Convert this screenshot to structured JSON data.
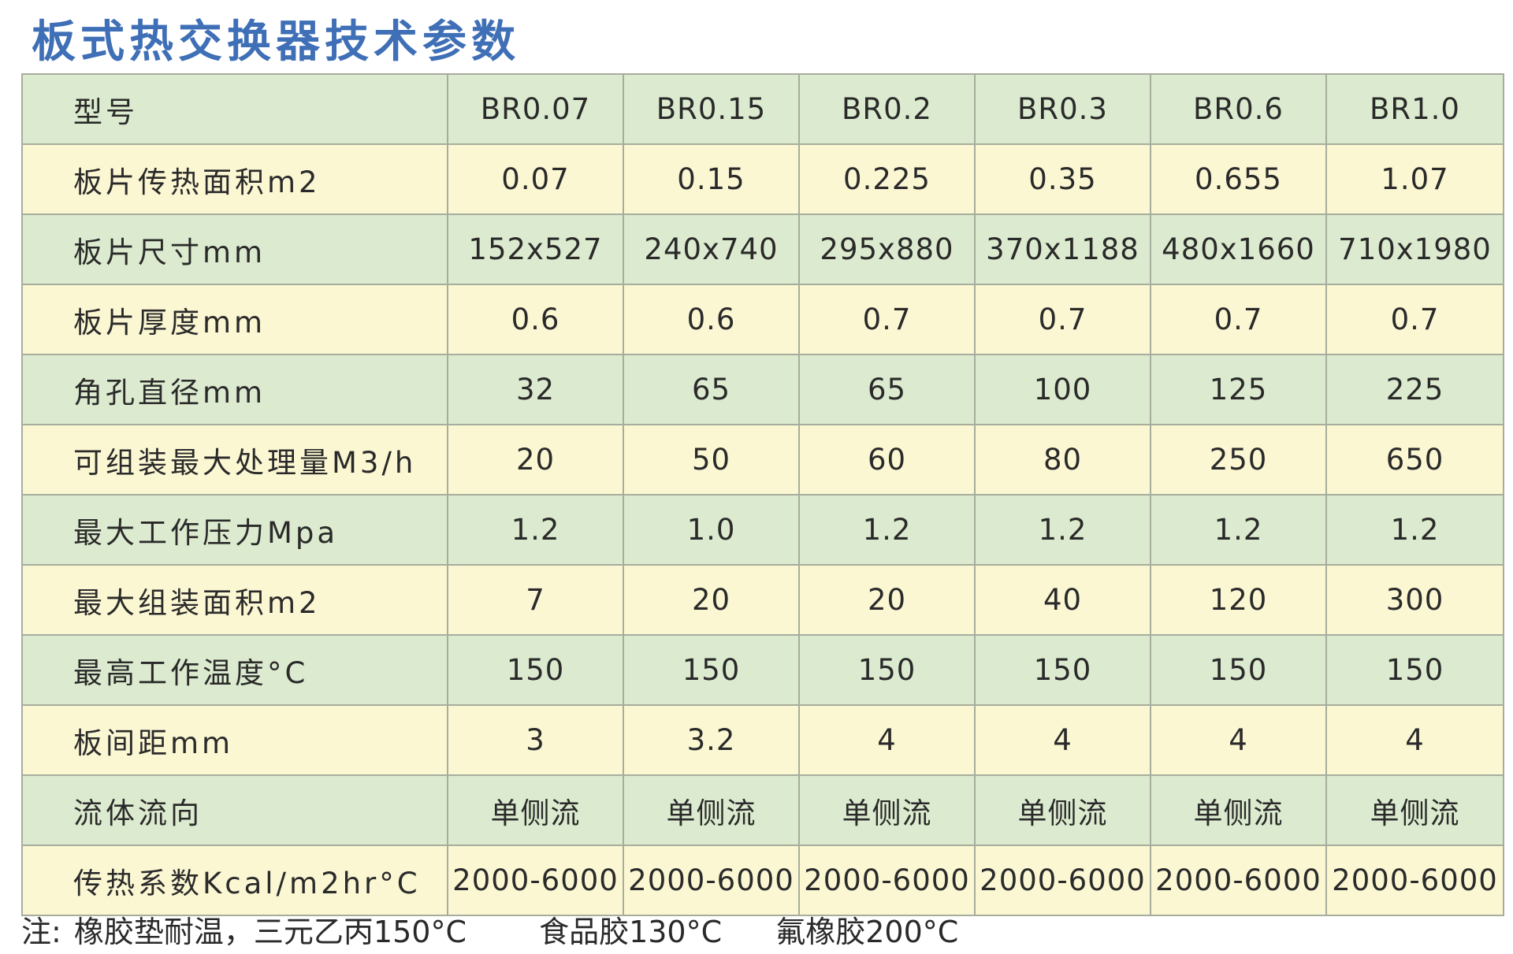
{
  "title": "板式热交换器技术参数",
  "header": {
    "label": "型号",
    "models": [
      "BR0.07",
      "BR0.15",
      "BR0.2",
      "BR0.3",
      "BR0.6",
      "BR1.0"
    ]
  },
  "rows": [
    {
      "label": "板片传热面积m2",
      "values": [
        "0.07",
        "0.15",
        "0.225",
        "0.35",
        "0.655",
        "1.07"
      ]
    },
    {
      "label": "板片尺寸mm",
      "values": [
        "152x527",
        "240x740",
        "295x880",
        "370x1188",
        "480x1660",
        "710x1980"
      ]
    },
    {
      "label": "板片厚度mm",
      "values": [
        "0.6",
        "0.6",
        "0.7",
        "0.7",
        "0.7",
        "0.7"
      ]
    },
    {
      "label": "角孔直径mm",
      "values": [
        "32",
        "65",
        "65",
        "100",
        "125",
        "225"
      ]
    },
    {
      "label": "可组装最大处理量M3/h",
      "values": [
        "20",
        "50",
        "60",
        "80",
        "250",
        "650"
      ]
    },
    {
      "label": "最大工作压力Mpa",
      "values": [
        "1.2",
        "1.0",
        "1.2",
        "1.2",
        "1.2",
        "1.2"
      ]
    },
    {
      "label": "最大组装面积m2",
      "values": [
        "7",
        "20",
        "20",
        "40",
        "120",
        "300"
      ]
    },
    {
      "label": "最高工作温度°C",
      "values": [
        "150",
        "150",
        "150",
        "150",
        "150",
        "150"
      ]
    },
    {
      "label": "板间距mm",
      "values": [
        "3",
        "3.2",
        "4",
        "4",
        "4",
        "4"
      ]
    },
    {
      "label": "流体流向",
      "values": [
        "单侧流",
        "单侧流",
        "单侧流",
        "单侧流",
        "单侧流",
        "单侧流"
      ]
    },
    {
      "label": "传热系数Kcal/m2hr°C",
      "values": [
        "2000-6000",
        "2000-6000",
        "2000-6000",
        "2000-6000",
        "2000-6000",
        "2000-6000"
      ]
    }
  ],
  "note": {
    "prefix": "注:",
    "item1": "橡胶垫耐温，三元乙丙150°C",
    "item2": "食品胶130°C",
    "item3": "氟橡胶200°C"
  },
  "colors": {
    "title": "#3f6fb6",
    "row_green": "#dcebcf",
    "row_yellow": "#fbf7d3",
    "border": "#a7ad9c"
  }
}
